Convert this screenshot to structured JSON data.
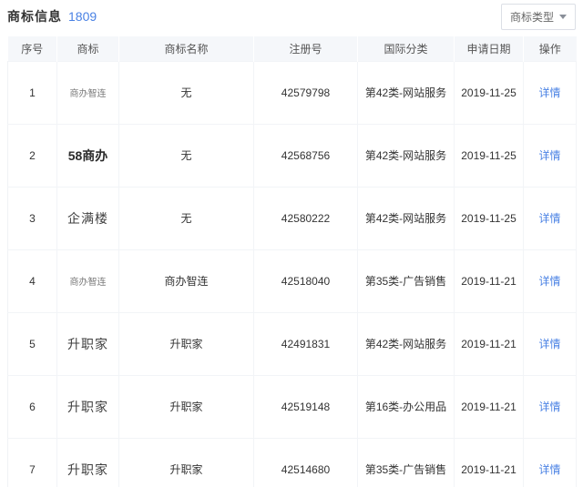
{
  "colors": {
    "accent": "#4a82e4",
    "link": "#4a82e4",
    "table_header_bg": "#f5f7fa",
    "border": "#f2f4f7",
    "title_text": "#333333"
  },
  "header": {
    "title": "商标信息",
    "count": "1809",
    "filter_button": {
      "label": "商标类型",
      "icon": "caret-down-icon"
    }
  },
  "table": {
    "columns": [
      "序号",
      "商标",
      "商标名称",
      "注册号",
      "国际分类",
      "申请日期",
      "操作"
    ],
    "rows": [
      {
        "index": "1",
        "mark_logo_text": "商办智连",
        "mark_logo_style": "small",
        "name": "无",
        "reg_no": "42579798",
        "intl_class": "第42类-网站服务",
        "apply_date": "2019-11-25",
        "action": "详情"
      },
      {
        "index": "2",
        "mark_logo_text": "58商办",
        "mark_logo_style": "bold",
        "name": "无",
        "reg_no": "42568756",
        "intl_class": "第42类-网站服务",
        "apply_date": "2019-11-25",
        "action": "详情"
      },
      {
        "index": "3",
        "mark_logo_text": "企满楼",
        "mark_logo_style": "normal",
        "name": "无",
        "reg_no": "42580222",
        "intl_class": "第42类-网站服务",
        "apply_date": "2019-11-25",
        "action": "详情"
      },
      {
        "index": "4",
        "mark_logo_text": "商办智连",
        "mark_logo_style": "small",
        "name": "商办智连",
        "reg_no": "42518040",
        "intl_class": "第35类-广告销售",
        "apply_date": "2019-11-21",
        "action": "详情"
      },
      {
        "index": "5",
        "mark_logo_text": "升职家",
        "mark_logo_style": "normal",
        "name": "升职家",
        "reg_no": "42491831",
        "intl_class": "第42类-网站服务",
        "apply_date": "2019-11-21",
        "action": "详情"
      },
      {
        "index": "6",
        "mark_logo_text": "升职家",
        "mark_logo_style": "normal",
        "name": "升职家",
        "reg_no": "42519148",
        "intl_class": "第16类-办公用品",
        "apply_date": "2019-11-21",
        "action": "详情"
      },
      {
        "index": "7",
        "mark_logo_text": "升职家",
        "mark_logo_style": "normal",
        "name": "升职家",
        "reg_no": "42514680",
        "intl_class": "第35类-广告销售",
        "apply_date": "2019-11-21",
        "action": "详情"
      }
    ]
  }
}
